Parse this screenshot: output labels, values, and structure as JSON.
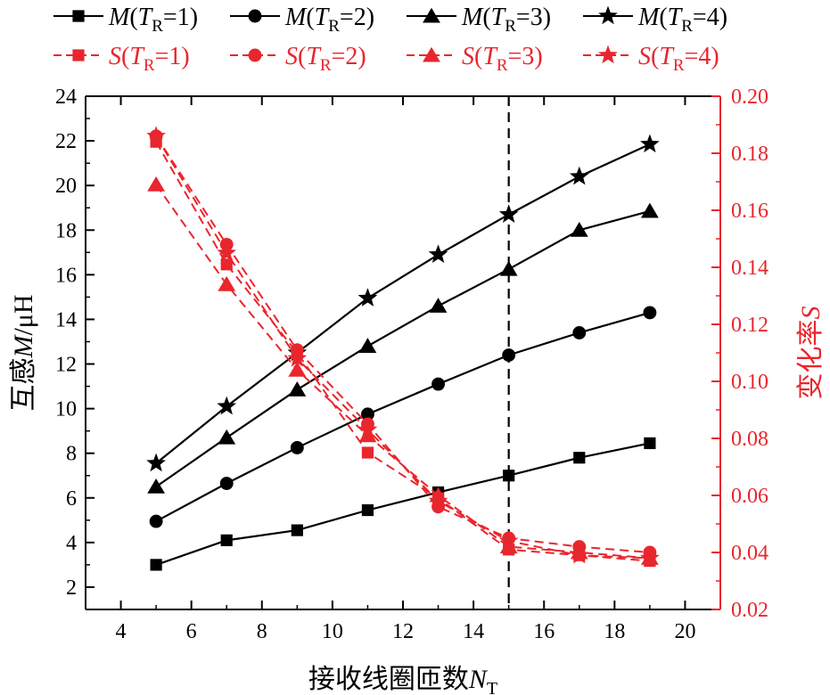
{
  "chart_data": {
    "type": "line",
    "xlabel": "接收线圈匝数N_T",
    "xlabel_parts": {
      "main": "接收线圈匝数",
      "italic": "N",
      "sub": "T"
    },
    "ylabel_left": "互感M/μH",
    "ylabel_left_parts": {
      "main": "互感",
      "italic": "M",
      "unit": "/μH"
    },
    "ylabel_right": "变化率S",
    "ylabel_right_parts": {
      "main": "变化率",
      "italic": "S"
    },
    "x_range": [
      3,
      21
    ],
    "y_left_range": [
      1,
      24
    ],
    "y_right_range": [
      0.02,
      0.2
    ],
    "x_ticks": [
      4,
      6,
      8,
      10,
      12,
      14,
      16,
      18,
      20
    ],
    "x_tick_labels": [
      "4",
      "6",
      "8",
      "10",
      "12",
      "14",
      "16",
      "18",
      "20"
    ],
    "y_left_ticks": [
      2,
      4,
      6,
      8,
      10,
      12,
      14,
      16,
      18,
      20,
      22,
      24
    ],
    "y_left_tick_labels": [
      "2",
      "4",
      "6",
      "8",
      "10",
      "12",
      "14",
      "16",
      "18",
      "20",
      "22",
      "24"
    ],
    "y_right_ticks": [
      0.02,
      0.04,
      0.06,
      0.08,
      0.1,
      0.12,
      0.14,
      0.16,
      0.18,
      0.2
    ],
    "y_right_tick_labels": [
      "0.02",
      "0.04",
      "0.06",
      "0.08",
      "0.10",
      "0.12",
      "0.14",
      "0.16",
      "0.18",
      "0.20"
    ],
    "vline_x": 15,
    "x": [
      5,
      7,
      9,
      11,
      13,
      15,
      17,
      19
    ],
    "series": [
      {
        "name": "M(T_R=1)",
        "label_var": "M",
        "tr": "1",
        "axis": "left",
        "marker": "square",
        "color": "#000000",
        "dashed": false,
        "values": [
          3.0,
          4.1,
          4.55,
          5.45,
          6.25,
          7.0,
          7.8,
          8.45
        ]
      },
      {
        "name": "M(T_R=2)",
        "label_var": "M",
        "tr": "2",
        "axis": "left",
        "marker": "circle",
        "color": "#000000",
        "dashed": false,
        "values": [
          4.95,
          6.65,
          8.25,
          9.75,
          11.1,
          12.4,
          13.4,
          14.3
        ]
      },
      {
        "name": "M(T_R=3)",
        "label_var": "M",
        "tr": "3",
        "axis": "left",
        "marker": "triangle",
        "color": "#000000",
        "dashed": false,
        "values": [
          6.5,
          8.7,
          10.85,
          12.8,
          14.6,
          16.25,
          18.0,
          18.85
        ]
      },
      {
        "name": "M(T_R=4)",
        "label_var": "M",
        "tr": "4",
        "axis": "left",
        "marker": "star",
        "color": "#000000",
        "dashed": false,
        "values": [
          7.55,
          10.1,
          12.5,
          14.95,
          16.9,
          18.7,
          20.4,
          21.85
        ]
      },
      {
        "name": "S(T_R=1)",
        "label_var": "S",
        "tr": "1",
        "axis": "right",
        "marker": "square",
        "color": "#e8262d",
        "dashed": true,
        "values": [
          0.184,
          0.141,
          0.11,
          0.075,
          0.059,
          0.041,
          0.039,
          0.037
        ]
      },
      {
        "name": "S(T_R=2)",
        "label_var": "S",
        "tr": "2",
        "axis": "right",
        "marker": "circle",
        "color": "#e8262d",
        "dashed": true,
        "values": [
          0.186,
          0.148,
          0.111,
          0.085,
          0.056,
          0.045,
          0.042,
          0.04
        ]
      },
      {
        "name": "S(T_R=3)",
        "label_var": "S",
        "tr": "3",
        "axis": "right",
        "marker": "triangle",
        "color": "#e8262d",
        "dashed": true,
        "values": [
          0.169,
          0.134,
          0.104,
          0.081,
          0.06,
          0.042,
          0.04,
          0.038
        ]
      },
      {
        "name": "S(T_R=4)",
        "label_var": "S",
        "tr": "4",
        "axis": "right",
        "marker": "star",
        "color": "#e8262d",
        "dashed": true,
        "values": [
          0.186,
          0.145,
          0.108,
          0.083,
          0.058,
          0.044,
          0.039,
          0.038
        ]
      }
    ],
    "legend_placement": "top"
  }
}
